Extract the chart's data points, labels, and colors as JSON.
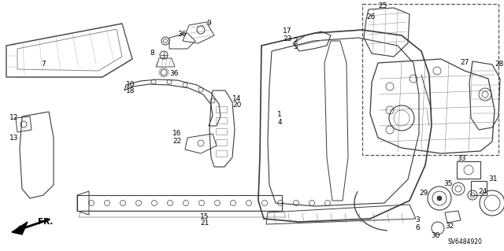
{
  "bg_color": "#ffffff",
  "diagram_code": "SV6484920",
  "gray": "#3a3a3a",
  "lgray": "#777777",
  "font_size": 6.5,
  "fig_w": 6.4,
  "fig_h": 3.19,
  "dpi": 100
}
